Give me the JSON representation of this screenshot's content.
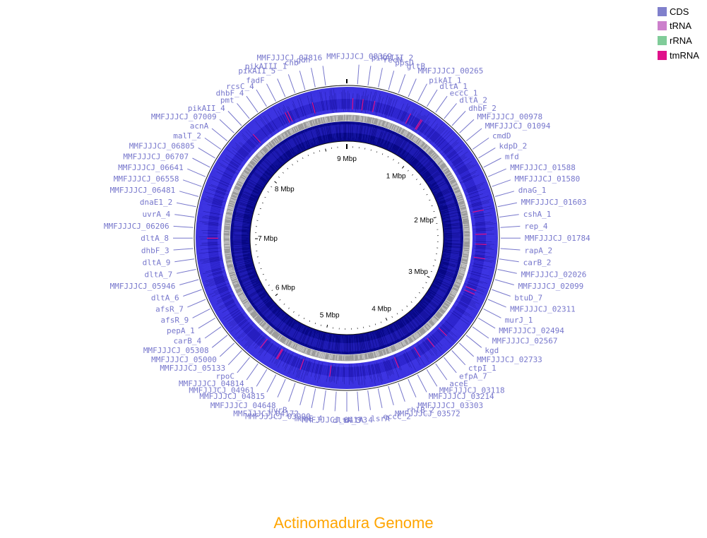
{
  "title": "Actinomadura Genome",
  "colors": {
    "title": "#FFA500",
    "gene_label": "#7777CC",
    "gc_outer": "#3B32E0",
    "gc_inner": "#0A0A8F",
    "skew": "#A6A6A6",
    "tick_text": "#000000"
  },
  "legend": [
    {
      "label": "CDS",
      "color": "#8080CC"
    },
    {
      "label": "tRNA",
      "color": "#CC80CC"
    },
    {
      "label": "rRNA",
      "color": "#80CC99"
    },
    {
      "label": "tmRNA",
      "color": "#E0118A"
    }
  ],
  "chart_data": {
    "type": "circular-genome",
    "title": "Actinomadura Genome",
    "axis_ticks": [
      "1 Mbp",
      "2 Mbp",
      "3 Mbp",
      "4 Mbp",
      "5 Mbp",
      "6 Mbp",
      "7 Mbp",
      "8 Mbp",
      "9 Mbp"
    ],
    "gene_labels": [
      "MMFJJJCJ_08369",
      "pikAIII_2",
      "recN",
      "ppsD",
      "gltB",
      "MMFJJJCJ_00265",
      "pikAI_1",
      "dltA_1",
      "eccC_1",
      "dltA_2",
      "dhbF_2",
      "MMFJJJCJ_00978",
      "MMFJJJCJ_01094",
      "cmdD",
      "kdpD_2",
      "mfd",
      "MMFJJJCJ_01588",
      "MMFJJJCJ_01580",
      "dnaG_1",
      "MMFJJJCJ_01603",
      "cshA_1",
      "rep_4",
      "MMFJJJCJ_01784",
      "rapA_2",
      "carB_2",
      "MMFJJJCJ_02026",
      "MMFJJJCJ_02099",
      "btuD_7",
      "MMFJJJCJ_02311",
      "murJ_1",
      "MMFJJJCJ_02494",
      "MMFJJJCJ_02567",
      "kgd",
      "MMFJJJCJ_02733",
      "ctpI_1",
      "efpA_7",
      "aceE",
      "MMFJJJCJ_03118",
      "MMFJJJCJ_03214",
      "MMFJJJCJ_03303",
      "rhlB_2",
      "MMFJJJCJ_03572",
      "eccC_2",
      "lsrA",
      "dltA_4",
      "dltA_3",
      "MMFJJJCJ_04173",
      "menE_4",
      "MMFJJJCJ_03990",
      "MMFJJJCJ_04172",
      "uvrB",
      "MMFJJJCJ_04648",
      "MMFJJJCJ_04815",
      "MMFJJJCJ_04961",
      "MMFJJJCJ_04814",
      "rpoC",
      "MMFJJJCJ_05133",
      "MMFJJJCJ_05000",
      "MMFJJJCJ_05308",
      "carB_4",
      "pepA_1",
      "afsR_9",
      "afsR_7",
      "dltA_6",
      "MMFJJJCJ_05946",
      "dltA_7",
      "dltA_9",
      "dhbF_3",
      "dltA_8",
      "MMFJJJCJ_06206",
      "uvrA_4",
      "dnaE1_2",
      "MMFJJJCJ_06481",
      "MMFJJJCJ_06558",
      "MMFJJJCJ_06641",
      "MMFJJJCJ_06707",
      "MMFJJJCJ_06805",
      "malT_2",
      "acnA",
      "MMFJJJCJ_07009",
      "pikAII_4",
      "pmt",
      "dhbF_4",
      "rcsC_4",
      "fadF",
      "pikAII_5",
      "pikAIII_1",
      "chb",
      "gdh",
      "MMFJJJCJ_07816"
    ]
  }
}
